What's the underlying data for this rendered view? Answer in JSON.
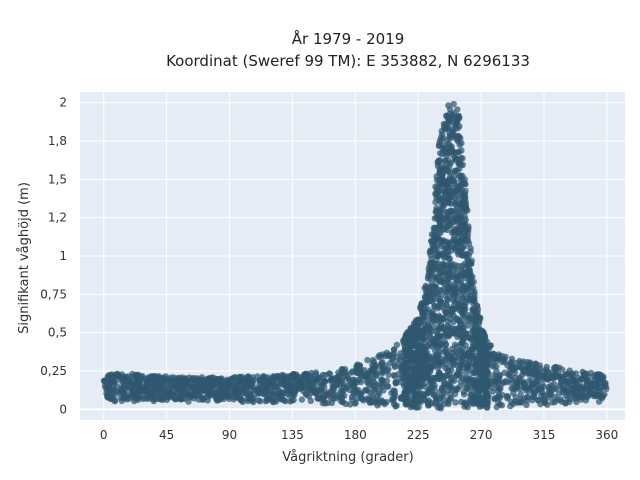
{
  "chart_data": {
    "type": "scatter",
    "title_lines": [
      "År 1979 - 2019",
      "Koordinat (Sweref 99 TM): E 353882, N 6296133"
    ],
    "xlabel": "Vågriktning (grader)",
    "ylabel": "Signifikant våghöjd (m)",
    "xlim": [
      -17,
      373
    ],
    "ylim": [
      -0.07,
      2.07
    ],
    "x_ticks": [
      0,
      45,
      90,
      135,
      180,
      225,
      270,
      315,
      360
    ],
    "x_tick_labels": [
      "0",
      "45",
      "90",
      "135",
      "180",
      "225",
      "270",
      "315",
      "360"
    ],
    "y_ticks": [
      0,
      0.25,
      0.5,
      0.75,
      1,
      1.25,
      1.5,
      1.75,
      2
    ],
    "y_tick_labels": [
      "0",
      "0,25",
      "0,5",
      "0,75",
      "1",
      "1,2",
      "1,5",
      "1,8",
      "2"
    ],
    "grid": true,
    "marker_color": "#2f5870",
    "plot_background": "#e5ecf6",
    "series": [
      {
        "name": "",
        "envelope_upper": [
          [
            0,
            0.22
          ],
          [
            15,
            0.24
          ],
          [
            30,
            0.22
          ],
          [
            60,
            0.21
          ],
          [
            90,
            0.21
          ],
          [
            120,
            0.22
          ],
          [
            150,
            0.24
          ],
          [
            170,
            0.27
          ],
          [
            190,
            0.33
          ],
          [
            205,
            0.38
          ],
          [
            215,
            0.47
          ],
          [
            225,
            0.6
          ],
          [
            232,
            0.9
          ],
          [
            236,
            1.3
          ],
          [
            240,
            1.75
          ],
          [
            245,
            1.98
          ],
          [
            250,
            2.0
          ],
          [
            254,
            1.95
          ],
          [
            258,
            1.55
          ],
          [
            262,
            1.1
          ],
          [
            266,
            0.72
          ],
          [
            272,
            0.5
          ],
          [
            280,
            0.38
          ],
          [
            295,
            0.32
          ],
          [
            315,
            0.29
          ],
          [
            340,
            0.25
          ],
          [
            360,
            0.23
          ]
        ],
        "envelope_lower": [
          [
            0,
            0.05
          ],
          [
            90,
            0.05
          ],
          [
            150,
            0.04
          ],
          [
            180,
            0.03
          ],
          [
            220,
            0.01
          ],
          [
            250,
            0.0
          ],
          [
            280,
            0.01
          ],
          [
            320,
            0.03
          ],
          [
            360,
            0.04
          ]
        ]
      }
    ]
  }
}
